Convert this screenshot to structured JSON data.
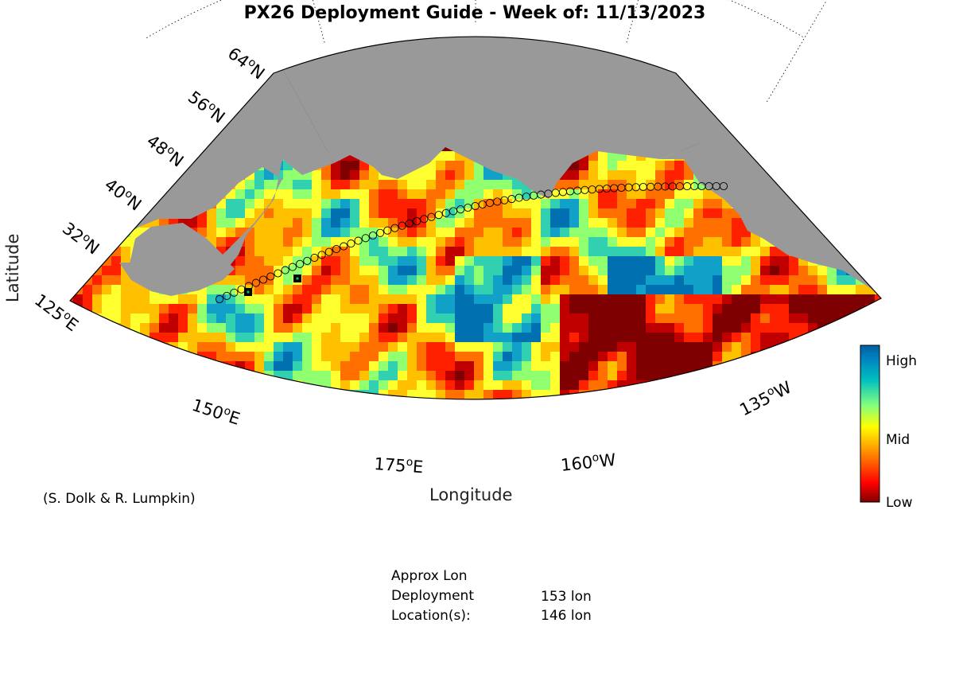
{
  "title": "PX26 Deployment Guide - Week of: 11/13/2023",
  "credit": "(S. Dolk & R. Lumpkin)",
  "axes": {
    "xlabel": "Longitude",
    "ylabel": "Latitude",
    "lat_ticks": [
      {
        "value": 64,
        "label": "64"
      },
      {
        "value": 56,
        "label": "56"
      },
      {
        "value": 48,
        "label": "48"
      },
      {
        "value": 40,
        "label": "40"
      },
      {
        "value": 32,
        "label": "32"
      }
    ],
    "lat_suffix": "N",
    "lon_ticks": [
      {
        "value": 125,
        "label": "125",
        "suffix": "E"
      },
      {
        "value": 150,
        "label": "150",
        "suffix": "E"
      },
      {
        "value": 175,
        "label": "175",
        "suffix": "E"
      },
      {
        "value": -160,
        "label": "160",
        "suffix": "W"
      },
      {
        "value": -135,
        "label": "135",
        "suffix": "W"
      }
    ],
    "degree_symbol": "o"
  },
  "colorbar": {
    "high": "High",
    "mid": "Mid",
    "low": "Low",
    "colors": [
      "#7f0000",
      "#ff0000",
      "#ff8000",
      "#ffff00",
      "#80ff80",
      "#00c0c0",
      "#0080c0",
      "#0060a0"
    ]
  },
  "deployment": {
    "heading": "Approx Lon",
    "label1": "Deployment",
    "label2": "Location(s):",
    "value1": "153 lon",
    "value2": "146 lon",
    "deploy_lons": [
      153,
      146
    ]
  },
  "colors": {
    "land": "#999999",
    "low": "#800000",
    "track_marker": "#000000"
  }
}
